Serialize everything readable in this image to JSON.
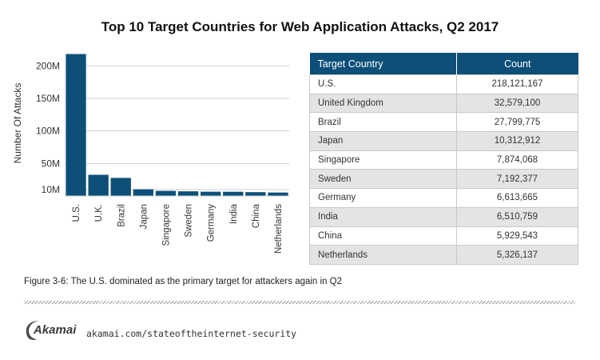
{
  "chart_data": {
    "type": "bar",
    "title": "Top 10 Target Countries for Web Application Attacks, Q2 2017",
    "ylabel": "Number Of Attacks",
    "xlabel": "",
    "ylim": [
      0,
      220000000
    ],
    "yticks": [
      {
        "value": 10000000,
        "label": "10M"
      },
      {
        "value": 50000000,
        "label": "50M"
      },
      {
        "value": 100000000,
        "label": "100M"
      },
      {
        "value": 150000000,
        "label": "150M"
      },
      {
        "value": 200000000,
        "label": "200M"
      }
    ],
    "grid": true,
    "bar_color": "#0d4f78",
    "categories": [
      "U.S.",
      "U.K.",
      "Brazil",
      "Japan",
      "Singapore",
      "Sweden",
      "Germany",
      "India",
      "China",
      "Netherlands"
    ],
    "values": [
      218121167,
      32579100,
      27799775,
      10312912,
      7874068,
      7192377,
      6613665,
      6510759,
      5929543,
      5326137
    ]
  },
  "table": {
    "header_country": "Target Country",
    "header_count": "Count",
    "header_color": "#0d4f78",
    "rows": [
      {
        "country": "U.S.",
        "count": "218,121,167"
      },
      {
        "country": "United Kingdom",
        "count": "32,579,100"
      },
      {
        "country": "Brazil",
        "count": "27,799,775"
      },
      {
        "country": "Japan",
        "count": "10,312,912"
      },
      {
        "country": "Singapore",
        "count": "7,874,068"
      },
      {
        "country": "Sweden",
        "count": "7,192,377"
      },
      {
        "country": "Germany",
        "count": "6,613,665"
      },
      {
        "country": "India",
        "count": "6,510,759"
      },
      {
        "country": "China",
        "count": "5,929,543"
      },
      {
        "country": "Netherlands",
        "count": "5,326,137"
      }
    ]
  },
  "caption": "Figure 3-6: The U.S. dominated as the primary target for attackers again in Q2",
  "footer": {
    "logo_text": "Akamai",
    "logo_icon": "akamai-swoosh-icon",
    "url": "akamai.com/stateoftheinternet-security"
  }
}
